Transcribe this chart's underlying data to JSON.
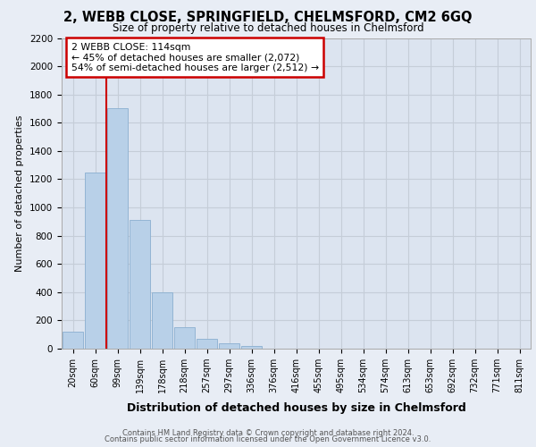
{
  "title_line1": "2, WEBB CLOSE, SPRINGFIELD, CHELMSFORD, CM2 6GQ",
  "title_line2": "Size of property relative to detached houses in Chelmsford",
  "xlabel": "Distribution of detached houses by size in Chelmsford",
  "ylabel": "Number of detached properties",
  "footer_line1": "Contains HM Land Registry data © Crown copyright and database right 2024.",
  "footer_line2": "Contains public sector information licensed under the Open Government Licence v3.0.",
  "annotation_title": "2 WEBB CLOSE: 114sqm",
  "annotation_line1": "← 45% of detached houses are smaller (2,072)",
  "annotation_line2": "54% of semi-detached houses are larger (2,512) →",
  "property_bin_index": 2,
  "red_line_x": 1.5,
  "bar_color": "#b8d0e8",
  "bar_edge_color": "#8aafd0",
  "highlight_color": "#cc0000",
  "background_color": "#e8edf5",
  "plot_bg_color": "#dce4f0",
  "annotation_box_color": "#ffffff",
  "annotation_box_edge": "#cc0000",
  "grid_color": "#c5cdd8",
  "categories": [
    "20sqm",
    "60sqm",
    "99sqm",
    "139sqm",
    "178sqm",
    "218sqm",
    "257sqm",
    "297sqm",
    "336sqm",
    "376sqm",
    "416sqm",
    "455sqm",
    "495sqm",
    "534sqm",
    "574sqm",
    "613sqm",
    "653sqm",
    "692sqm",
    "732sqm",
    "771sqm",
    "811sqm"
  ],
  "values": [
    120,
    1250,
    1700,
    910,
    400,
    150,
    70,
    35,
    20,
    0,
    0,
    0,
    0,
    0,
    0,
    0,
    0,
    0,
    0,
    0,
    0
  ],
  "ylim": [
    0,
    2200
  ],
  "yticks": [
    0,
    200,
    400,
    600,
    800,
    1000,
    1200,
    1400,
    1600,
    1800,
    2000,
    2200
  ]
}
